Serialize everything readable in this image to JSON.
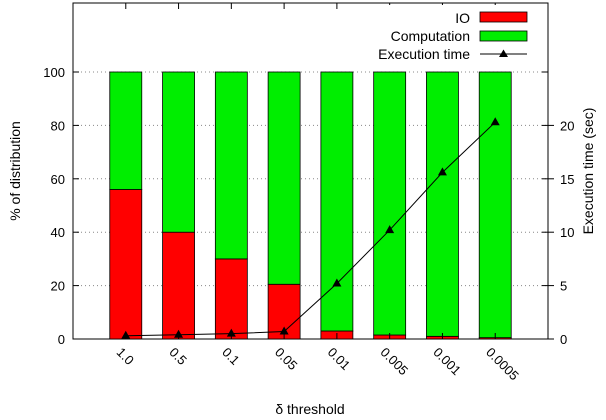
{
  "chart_data": {
    "type": "bar",
    "stacked": true,
    "categories": [
      "1.0",
      "0.5",
      "0.1",
      "0.05",
      "0.01",
      "0.005",
      "0.001",
      "0.0005"
    ],
    "series": [
      {
        "name": "IO",
        "type": "bar",
        "axis": "left",
        "color": "#ff0000",
        "values": [
          56,
          40,
          30,
          20.5,
          3,
          1.5,
          1,
          0.5
        ]
      },
      {
        "name": "Computation",
        "type": "bar",
        "axis": "left",
        "color": "#00ee00",
        "values": [
          44,
          60,
          70,
          79.5,
          97,
          98.5,
          99,
          99.5
        ]
      },
      {
        "name": "Execution time",
        "type": "line",
        "axis": "right",
        "color": "#000000",
        "marker": "triangle",
        "values": [
          0.3,
          0.4,
          0.5,
          0.7,
          5.2,
          10.2,
          15.6,
          20.3
        ]
      }
    ],
    "xlabel": "δ threshold",
    "ylabel": "% of distribution",
    "y2label": "Execution time (sec)",
    "yticks": [
      0,
      20,
      40,
      60,
      80,
      100
    ],
    "y2ticks": [
      0,
      5,
      10,
      15,
      20
    ],
    "ylim": [
      0,
      100
    ],
    "y2lim": [
      0,
      25
    ],
    "grid": "horizontal dotted",
    "legend_position": "top-right"
  }
}
